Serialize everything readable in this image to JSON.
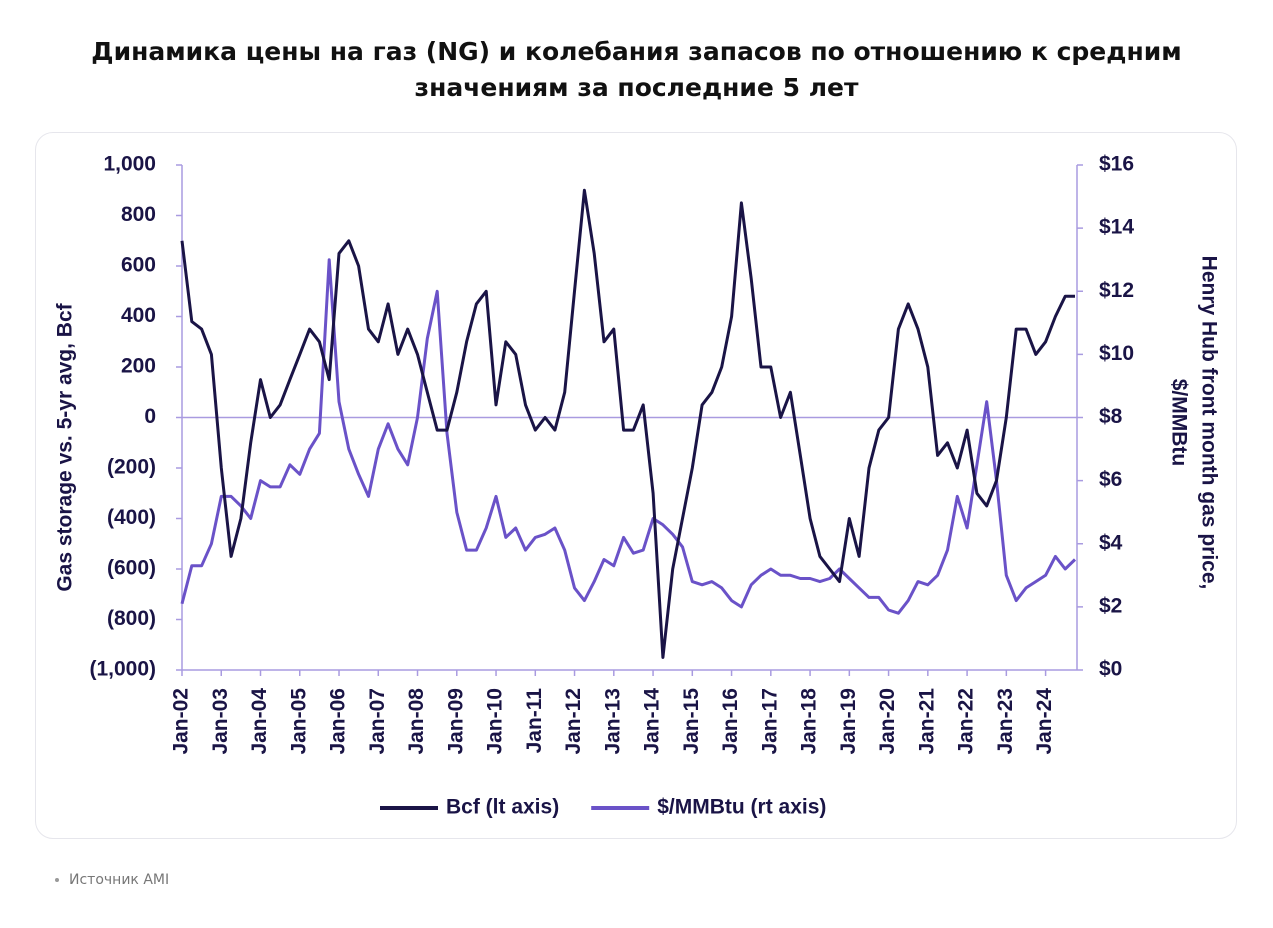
{
  "header": {
    "title": "Динамика цены на газ (NG) и колебания запасов по отношению к средним значениям за последние 5 лет"
  },
  "footer": {
    "source": "Источник AMI"
  },
  "chart_data": {
    "type": "line",
    "ylabel": "Gas storage vs. 5-yr avg, Bcf",
    "y2label": [
      "Henry Hub front month gas price,",
      "$/MMBtu"
    ],
    "x": [
      2002,
      2002.25,
      2002.5,
      2002.75,
      2003,
      2003.25,
      2003.5,
      2003.75,
      2004,
      2004.25,
      2004.5,
      2004.75,
      2005,
      2005.25,
      2005.5,
      2005.75,
      2006,
      2006.25,
      2006.5,
      2006.75,
      2007,
      2007.25,
      2007.5,
      2007.75,
      2008,
      2008.25,
      2008.5,
      2008.75,
      2009,
      2009.25,
      2009.5,
      2009.75,
      2010,
      2010.25,
      2010.5,
      2010.75,
      2011,
      2011.25,
      2011.5,
      2011.75,
      2012,
      2012.25,
      2012.5,
      2012.75,
      2013,
      2013.25,
      2013.5,
      2013.75,
      2014,
      2014.25,
      2014.5,
      2014.75,
      2015,
      2015.25,
      2015.5,
      2015.75,
      2016,
      2016.25,
      2016.5,
      2016.75,
      2017,
      2017.25,
      2017.5,
      2017.75,
      2018,
      2018.25,
      2018.5,
      2018.75,
      2019,
      2019.25,
      2019.5,
      2019.75,
      2020,
      2020.25,
      2020.5,
      2020.75,
      2021,
      2021.25,
      2021.5,
      2021.75,
      2022,
      2022.25,
      2022.5,
      2022.75,
      2023,
      2023.25,
      2023.5,
      2023.75,
      2024,
      2024.25,
      2024.5,
      2024.75
    ],
    "series": [
      {
        "name": "Bcf (lt axis)",
        "color": "#1a1446",
        "axis": "y",
        "values": [
          700,
          380,
          350,
          250,
          -200,
          -550,
          -400,
          -100,
          150,
          0,
          50,
          150,
          250,
          350,
          300,
          150,
          650,
          700,
          600,
          350,
          300,
          450,
          250,
          350,
          250,
          100,
          -50,
          -50,
          100,
          300,
          450,
          500,
          50,
          300,
          250,
          50,
          -50,
          0,
          -50,
          100,
          500,
          900,
          650,
          300,
          350,
          -50,
          -50,
          50,
          -300,
          -950,
          -600,
          -400,
          -200,
          50,
          100,
          200,
          400,
          850,
          550,
          200,
          200,
          0,
          100,
          -150,
          -400,
          -550,
          -600,
          -650,
          -400,
          -550,
          -200,
          -50,
          0,
          350,
          450,
          350,
          200,
          -150,
          -100,
          -200,
          -50,
          -300,
          -350,
          -250,
          0,
          350,
          350,
          250,
          300,
          400,
          480,
          480
        ]
      },
      {
        "name": "$/MMBtu (rt axis)",
        "color": "#6a52c8",
        "axis": "y2",
        "values": [
          2.1,
          3.3,
          3.3,
          4.0,
          5.5,
          5.5,
          5.2,
          4.8,
          6.0,
          5.8,
          5.8,
          6.5,
          6.2,
          7.0,
          7.5,
          13.0,
          8.5,
          7.0,
          6.2,
          5.5,
          7.0,
          7.8,
          7.0,
          6.5,
          8.0,
          10.5,
          12.0,
          7.5,
          5.0,
          3.8,
          3.8,
          4.5,
          5.5,
          4.2,
          4.5,
          3.8,
          4.2,
          4.3,
          4.5,
          3.8,
          2.6,
          2.2,
          2.8,
          3.5,
          3.3,
          4.2,
          3.7,
          3.8,
          4.8,
          4.6,
          4.3,
          3.9,
          2.8,
          2.7,
          2.8,
          2.6,
          2.2,
          2.0,
          2.7,
          3.0,
          3.2,
          3.0,
          3.0,
          2.9,
          2.9,
          2.8,
          2.9,
          3.2,
          2.9,
          2.6,
          2.3,
          2.3,
          1.9,
          1.8,
          2.2,
          2.8,
          2.7,
          3.0,
          3.8,
          5.5,
          4.5,
          6.5,
          8.5,
          6.0,
          3.0,
          2.2,
          2.6,
          2.8,
          3.0,
          3.6,
          3.2,
          3.5
        ]
      }
    ],
    "xlim": [
      2002,
      2024.8
    ],
    "xticks": [
      {
        "value": 2002,
        "label": "Jan-02"
      },
      {
        "value": 2003,
        "label": "Jan-03"
      },
      {
        "value": 2004,
        "label": "Jan-04"
      },
      {
        "value": 2005,
        "label": "Jan-05"
      },
      {
        "value": 2006,
        "label": "Jan-06"
      },
      {
        "value": 2007,
        "label": "Jan-07"
      },
      {
        "value": 2008,
        "label": "Jan-08"
      },
      {
        "value": 2009,
        "label": "Jan-09"
      },
      {
        "value": 2010,
        "label": "Jan-10"
      },
      {
        "value": 2011,
        "label": "Jan-11"
      },
      {
        "value": 2012,
        "label": "Jan-12"
      },
      {
        "value": 2013,
        "label": "Jan-13"
      },
      {
        "value": 2014,
        "label": "Jan-14"
      },
      {
        "value": 2015,
        "label": "Jan-15"
      },
      {
        "value": 2016,
        "label": "Jan-16"
      },
      {
        "value": 2017,
        "label": "Jan-17"
      },
      {
        "value": 2018,
        "label": "Jan-18"
      },
      {
        "value": 2019,
        "label": "Jan-19"
      },
      {
        "value": 2020,
        "label": "Jan-20"
      },
      {
        "value": 2021,
        "label": "Jan-21"
      },
      {
        "value": 2022,
        "label": "Jan-22"
      },
      {
        "value": 2023,
        "label": "Jan-23"
      },
      {
        "value": 2024,
        "label": "Jan-24"
      }
    ],
    "ylim": [
      -1000,
      1000
    ],
    "yticks": [
      {
        "value": 1000,
        "label": "1,000"
      },
      800,
      600,
      400,
      200,
      0,
      {
        "value": -200,
        "label": "(200)"
      },
      {
        "value": -400,
        "label": "(400)"
      },
      {
        "value": -600,
        "label": "(600)"
      },
      {
        "value": -800,
        "label": "(800)"
      },
      {
        "value": -1000,
        "label": "(1,000)"
      }
    ],
    "y2lim": [
      0,
      16
    ],
    "y2ticks": [
      {
        "value": 16,
        "label": "$16"
      },
      {
        "value": 14,
        "label": "$14"
      },
      {
        "value": 12,
        "label": "$12"
      },
      {
        "value": 10,
        "label": "$10"
      },
      {
        "value": 8,
        "label": "$8"
      },
      {
        "value": 6,
        "label": "$6"
      },
      {
        "value": 4,
        "label": "$4"
      },
      {
        "value": 2,
        "label": "$2"
      },
      {
        "value": 0,
        "label": "$0"
      }
    ],
    "axis_color": "#a99be0",
    "legend": "bottom"
  }
}
